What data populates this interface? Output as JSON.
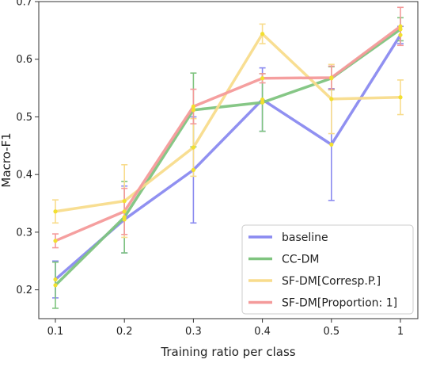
{
  "chart_data": {
    "type": "line",
    "xlabel": "Training ratio per class",
    "ylabel": "Macro-F1",
    "categories": [
      "0.1",
      "0.2",
      "0.3",
      "0.4",
      "0.5",
      "1"
    ],
    "ylim": [
      0.15,
      0.7
    ],
    "yticks": [
      "0.2",
      "0.3",
      "0.4",
      "0.5",
      "0.6",
      "0.7"
    ],
    "grid": false,
    "legend_position": "bottom-right",
    "series": [
      {
        "name": "baseline",
        "color": "#8a8af0",
        "values": [
          0.218,
          0.322,
          0.408,
          0.53,
          0.452,
          0.642
        ],
        "err": [
          0.032,
          0.058,
          0.092,
          0.055,
          0.097,
          0.015
        ]
      },
      {
        "name": "CC-DM",
        "color": "#7fc47f",
        "values": [
          0.208,
          0.326,
          0.512,
          0.525,
          0.567,
          0.652
        ],
        "err": [
          0.04,
          0.062,
          0.064,
          0.05,
          0.02,
          0.02
        ]
      },
      {
        "name": "SF-DM[Corresp.P.]",
        "color": "#f8dc8c",
        "values": [
          0.336,
          0.354,
          0.447,
          0.644,
          0.531,
          0.534
        ],
        "err": [
          0.02,
          0.063,
          0.05,
          0.017,
          0.06,
          0.03
        ]
      },
      {
        "name": "SF-DM[Proportion: 1]",
        "color": "#f49a9a",
        "values": [
          0.285,
          0.336,
          0.518,
          0.567,
          0.568,
          0.657
        ],
        "err": [
          0.012,
          0.04,
          0.03,
          0.008,
          0.02,
          0.033
        ]
      }
    ],
    "marker_color": "#f2e030"
  }
}
